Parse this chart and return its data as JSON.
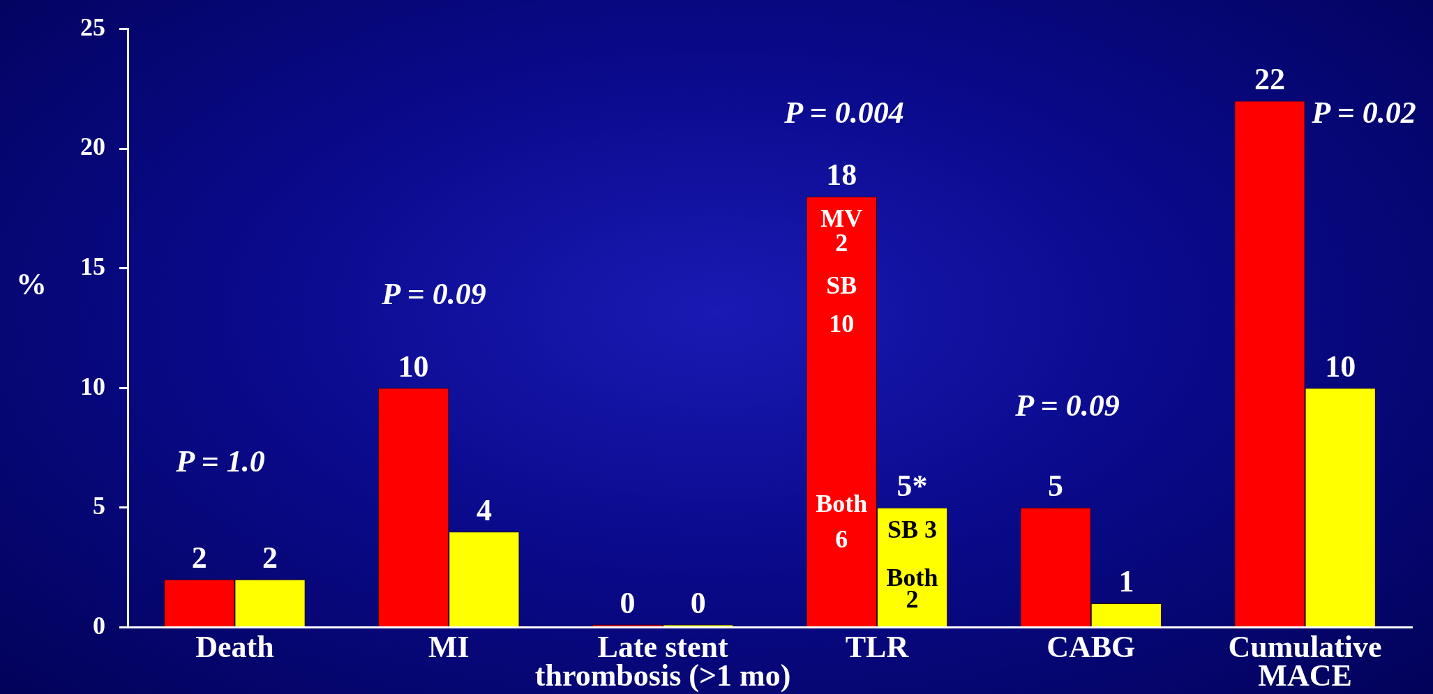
{
  "chart_data": {
    "type": "bar",
    "ylabel": "%",
    "categories": [
      "Death",
      "MI",
      "Late stent thrombosis (>1 mo)",
      "TLR",
      "CABG",
      "Cumulative MACE"
    ],
    "series": [
      {
        "color": "#ff0000",
        "values": [
          2,
          10,
          0,
          18,
          5,
          22
        ],
        "value_labels": [
          "2",
          "10",
          "0",
          "18",
          "5",
          "22"
        ]
      },
      {
        "color": "#ffff00",
        "values": [
          2,
          4,
          0,
          5,
          1,
          10
        ],
        "value_labels": [
          "2",
          "4",
          "0",
          "5*",
          "1",
          "10"
        ]
      }
    ],
    "ylim": [
      0,
      25
    ],
    "yticks": [
      0,
      5,
      10,
      15,
      20,
      25
    ],
    "grid": false,
    "legend": false,
    "annotations": [
      "P = 1.0",
      "P = 0.09",
      "P = 0.004",
      "P = 0.09",
      "P = 0.02",
      {
        "text": "MV",
        "x": "TLR",
        "y": 17
      },
      {
        "text": "2",
        "x": "TLR",
        "y": 16
      },
      {
        "text": "SB",
        "x": "TLR",
        "y": 14.2
      },
      {
        "text": "10",
        "x": "TLR",
        "y": 12.6
      },
      {
        "text": "Both",
        "x": "TLR",
        "y": 5.1
      },
      {
        "text": "6",
        "x": "TLR",
        "y": 3.6
      },
      {
        "text": "SB 3",
        "x": "TLR",
        "y": 4
      },
      {
        "text": "Both",
        "x": "TLR",
        "y": 2
      },
      {
        "text": "2",
        "x": "TLR",
        "y": 1.1
      }
    ]
  }
}
